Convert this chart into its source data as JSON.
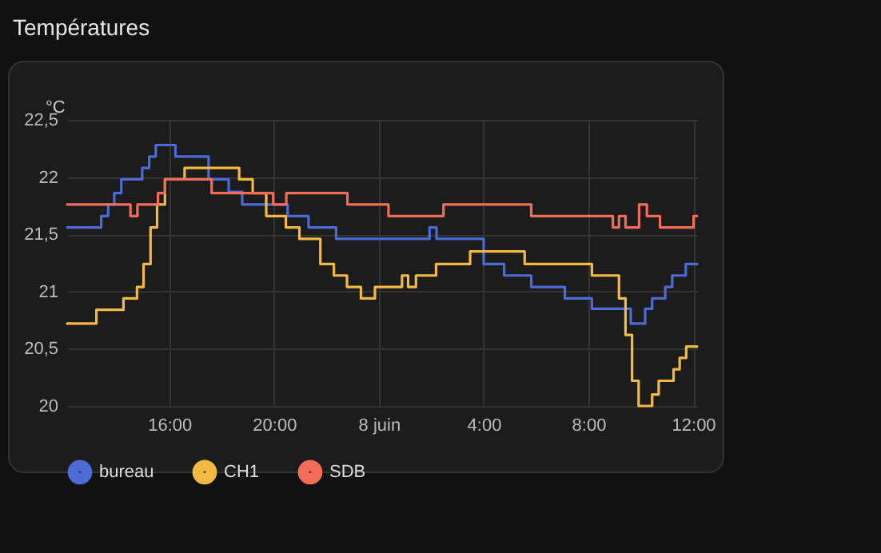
{
  "chart_data": {
    "type": "step",
    "title": "Températures",
    "ylabel": "°C",
    "xlim": [
      "--06-07T12:06",
      "--06-08T12:09"
    ],
    "xticks": [
      {
        "value": "--06-07T16:00",
        "label": "16:00"
      },
      {
        "value": "--06-07T20:00",
        "label": "20:00"
      },
      {
        "value": "--06-08T00:00",
        "label": "8 juin"
      },
      {
        "value": "--06-08T04:00",
        "label": "4:00"
      },
      {
        "value": "--06-08T08:00",
        "label": "8:00"
      },
      {
        "value": "--06-08T12:00",
        "label": "12:00"
      }
    ],
    "ylim": [
      20,
      22.5
    ],
    "yticks": [
      20,
      {
        "value": 20.5,
        "label": "20,5"
      },
      21,
      {
        "value": 21.5,
        "label": "21,5"
      },
      22,
      {
        "value": 22.5,
        "label": "22,5"
      }
    ],
    "grid": true,
    "legend": "bottom",
    "marker": "none",
    "series": [
      {
        "name": "bureau",
        "color": "#4b6bd6",
        "x": [
          "--06-07T12:06",
          "--06-07T13:24",
          "--06-07T13:40",
          "--06-07T13:54",
          "--06-07T14:10",
          "--06-07T14:58",
          "--06-07T15:14",
          "--06-07T15:29",
          "--06-07T16:14",
          "--06-07T17:30",
          "--06-07T18:16",
          "--06-07T18:47",
          "--06-07T20:31",
          "--06-07T21:19",
          "--06-07T22:22",
          "--06-08T01:56",
          "--06-08T02:12",
          "--06-08T04:00",
          "--06-08T04:47",
          "--06-08T05:49",
          "--06-08T07:06",
          "--06-08T08:08",
          "--06-08T09:37",
          "--06-08T10:10",
          "--06-08T10:26",
          "--06-08T10:56",
          "--06-08T11:12",
          "--06-08T11:43",
          "--06-08T12:09"
        ],
        "values": [
          21.56,
          21.66,
          21.76,
          21.86,
          21.98,
          22.08,
          22.18,
          22.28,
          22.18,
          21.98,
          21.87,
          21.76,
          21.66,
          21.56,
          21.46,
          21.56,
          21.46,
          21.24,
          21.14,
          21.04,
          20.94,
          20.85,
          20.72,
          20.85,
          20.94,
          21.04,
          21.14,
          21.24,
          21.24
        ]
      },
      {
        "name": "CH1",
        "color": "#f4b942",
        "x": [
          "--06-07T12:06",
          "--06-07T13:13",
          "--06-07T14:15",
          "--06-07T14:46",
          "--06-07T15:01",
          "--06-07T15:17",
          "--06-07T15:32",
          "--06-07T15:50",
          "--06-07T16:35",
          "--06-07T18:40",
          "--06-07T19:11",
          "--06-07T19:42",
          "--06-07T20:27",
          "--06-07T20:58",
          "--06-07T21:46",
          "--06-07T22:17",
          "--06-07T22:47",
          "--06-07T23:19",
          "--06-07T23:51",
          "--06-08T00:53",
          "--06-08T01:07",
          "--06-08T01:25",
          "--06-08T02:11",
          "--06-08T03:29",
          "--06-08T05:34",
          "--06-08T08:08",
          "--06-08T09:10",
          "--06-08T09:25",
          "--06-08T09:40",
          "--06-08T09:55",
          "--06-08T10:26",
          "--06-08T10:41",
          "--06-08T11:15",
          "--06-08T11:29",
          "--06-08T11:44",
          "--06-08T12:09"
        ],
        "values": [
          20.72,
          20.84,
          20.94,
          21.04,
          21.24,
          21.56,
          21.76,
          21.98,
          22.08,
          21.98,
          21.86,
          21.66,
          21.56,
          21.46,
          21.24,
          21.14,
          21.04,
          20.94,
          21.04,
          21.14,
          21.04,
          21.14,
          21.24,
          21.35,
          21.24,
          21.14,
          20.94,
          20.62,
          20.22,
          20.0,
          20.1,
          20.22,
          20.32,
          20.42,
          20.52,
          20.52
        ]
      },
      {
        "name": "SDB",
        "color": "#f26c58",
        "x": [
          "--06-07T12:06",
          "--06-07T14:31",
          "--06-07T14:47",
          "--06-07T15:34",
          "--06-07T15:50",
          "--06-07T17:37",
          "--06-07T19:58",
          "--06-07T20:28",
          "--06-07T22:48",
          "--06-08T00:22",
          "--06-08T02:28",
          "--06-08T05:49",
          "--06-08T08:56",
          "--06-08T09:10",
          "--06-08T09:25",
          "--06-08T09:56",
          "--06-08T10:14",
          "--06-08T10:44",
          "--06-08T12:01",
          "--06-08T12:09"
        ],
        "values": [
          21.76,
          21.66,
          21.76,
          21.86,
          21.98,
          21.86,
          21.76,
          21.86,
          21.76,
          21.66,
          21.76,
          21.66,
          21.56,
          21.66,
          21.56,
          21.76,
          21.66,
          21.56,
          21.66,
          21.66
        ]
      }
    ]
  }
}
